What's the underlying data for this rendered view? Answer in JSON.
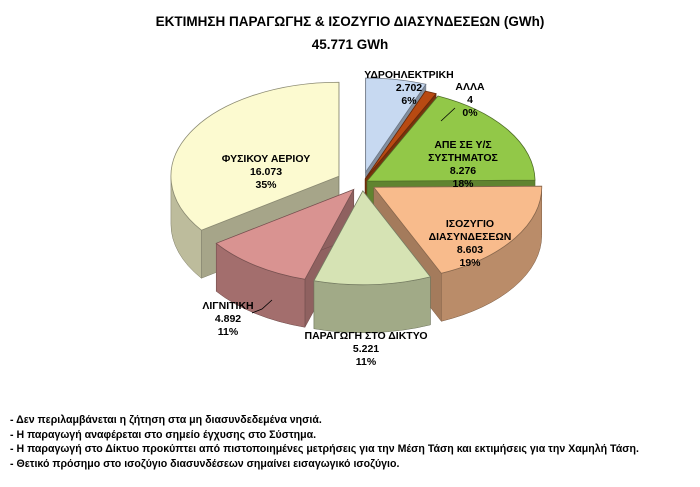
{
  "chart_data": {
    "type": "pie",
    "title": "ΕΚΤΙΜΗΣΗ ΠΑΡΑΓΩΓΗΣ & ΙΣΟΖΥΓΙΟ ΔΙΑΣΥΝΔΕΣΕΩΝ (GWh)",
    "subtitle": "45.771  GWh",
    "slices": [
      {
        "label": "ΥΔΡΟΗΛΕΚΤΡΙΚΗ",
        "value_text": "2.702",
        "percent_text": "6%",
        "value": 2702,
        "percent": 6,
        "color": "#c7d9f1"
      },
      {
        "label": "ΑΛΛΑ",
        "value_text": "4",
        "percent_text": "0%",
        "value": 4,
        "percent": 0,
        "color": "#b84a12"
      },
      {
        "label": "ΑΠΕ ΣΕ Υ/Σ ΣΥΣΤΗΜΑΤΟΣ",
        "value_text": "8.276",
        "percent_text": "18%",
        "value": 8276,
        "percent": 18,
        "color": "#92c848"
      },
      {
        "label": "ΙΣΟΖΥΓΙΟ ΔΙΑΣΥΝΔΕΣΕΩΝ",
        "value_text": "8.603",
        "percent_text": "19%",
        "value": 8603,
        "percent": 19,
        "color": "#f8bb8c"
      },
      {
        "label": "ΠΑΡΑΓΩΓΗ ΣΤΟ ΔΙΚΤΥΟ",
        "value_text": "5.221",
        "percent_text": "11%",
        "value": 5221,
        "percent": 11,
        "color": "#d6e3b4"
      },
      {
        "label": "ΛΙΓΝΙΤΙΚΗ",
        "value_text": "4.892",
        "percent_text": "11%",
        "value": 4892,
        "percent": 11,
        "color": "#d99391"
      },
      {
        "label": "ΦΥΣΙΚΟΥ ΑΕΡΙΟΥ",
        "value_text": "16.073",
        "percent_text": "35%",
        "value": 16073,
        "percent": 35,
        "color": "#fcfad0"
      }
    ]
  },
  "notes": [
    "- Δεν περιλαμβάνεται η ζήτηση στα μη διασυνδεδεμένα νησιά.",
    "- Η παραγωγή αναφέρεται στο σημείο έγχυσης στο Σύστημα.",
    "- Η παραγωγή στο Δίκτυο προκύπτει από πιστοποιημένες μετρήσεις για την Μέση Τάση και εκτιμήσεις για την Χαμηλή Τάση.",
    "- Θετικό πρόσημο στο ισοζύγιο διασυνδέσεων σημαίνει εισαγωγικό ισοζύγιο."
  ]
}
